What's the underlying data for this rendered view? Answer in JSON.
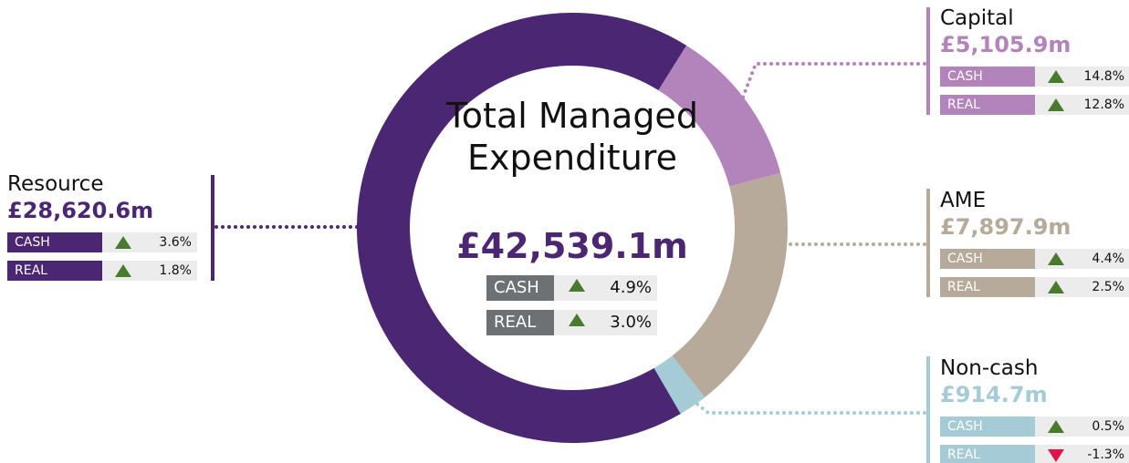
{
  "chart_data": {
    "type": "donut",
    "title": "Total Managed Expenditure",
    "total_value": 42539.1,
    "total_label": "£42,539.1m",
    "change_names": [
      "CASH",
      "REAL"
    ],
    "total_changes": [
      {
        "value": 4.9,
        "label": "4.9%"
      },
      {
        "value": 3.0,
        "label": "3.0%"
      }
    ],
    "categories": [
      "Capital",
      "AME",
      "Non-cash",
      "Resource"
    ],
    "values": [
      5105.9,
      7897.9,
      914.7,
      28620.6
    ],
    "value_labels": [
      "£5,105.9m",
      "£7,897.9m",
      "£914.7m",
      "£28,620.6m"
    ],
    "colors": [
      "#b384bc",
      "#b8aa9a",
      "#a5cbd6",
      "#4b2672"
    ],
    "changes": [
      [
        {
          "value": 14.8,
          "label": "14.8%"
        },
        {
          "value": 12.8,
          "label": "12.8%"
        }
      ],
      [
        {
          "value": 4.4,
          "label": "4.4%"
        },
        {
          "value": 2.5,
          "label": "2.5%"
        }
      ],
      [
        {
          "value": 0.5,
          "label": "0.5%"
        },
        {
          "value": -1.3,
          "label": "-1.3%"
        }
      ],
      [
        {
          "value": 3.6,
          "label": "3.6%"
        },
        {
          "value": 1.8,
          "label": "1.8%"
        }
      ]
    ]
  }
}
